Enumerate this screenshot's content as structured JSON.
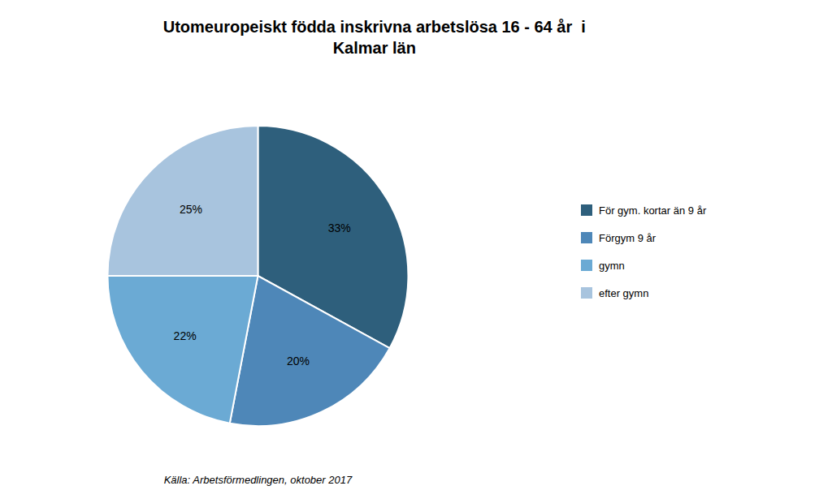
{
  "chart_data": {
    "type": "pie",
    "title": "Utomeuropeiskt födda inskrivna arbetslösa 16 - 64 år  i\nKalmar län",
    "categories": [
      "För gym. kortar än 9 år",
      "Förgym 9 år",
      "gymn",
      "efter gymn"
    ],
    "values": [
      33,
      20,
      22,
      25
    ],
    "value_labels": [
      "33%",
      "20%",
      "22%",
      "25%"
    ],
    "colors": [
      "#2e5f7c",
      "#4e87b8",
      "#6baad4",
      "#a8c4de"
    ],
    "data_labels": true,
    "legend": "right",
    "annotations": [
      "Källa: Arbetsförmedlingen, oktober 2017"
    ]
  }
}
